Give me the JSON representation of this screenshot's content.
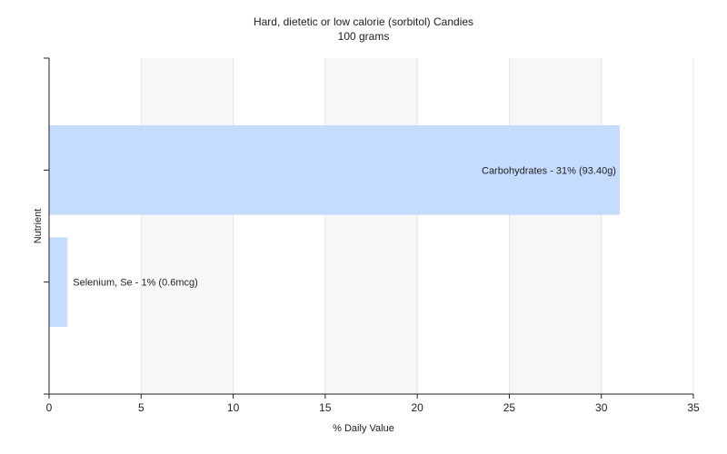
{
  "chart_data": {
    "type": "bar",
    "orientation": "horizontal",
    "title": "Hard, dietetic or low calorie (sorbitol) Candies",
    "subtitle": "100 grams",
    "xlabel": "% Daily Value",
    "ylabel": "Nutrient",
    "xlim": [
      0,
      35
    ],
    "xticks": [
      0,
      5,
      10,
      15,
      20,
      25,
      30,
      35
    ],
    "grid": true,
    "legend": "none",
    "bar_color": "#c6dcff",
    "categories": [
      "Carbohydrates",
      "Selenium, Se"
    ],
    "values": [
      31,
      1
    ],
    "labels": [
      "Carbohydrates - 31% (93.40g)",
      "Selenium, Se - 1% (0.6mcg)"
    ]
  }
}
